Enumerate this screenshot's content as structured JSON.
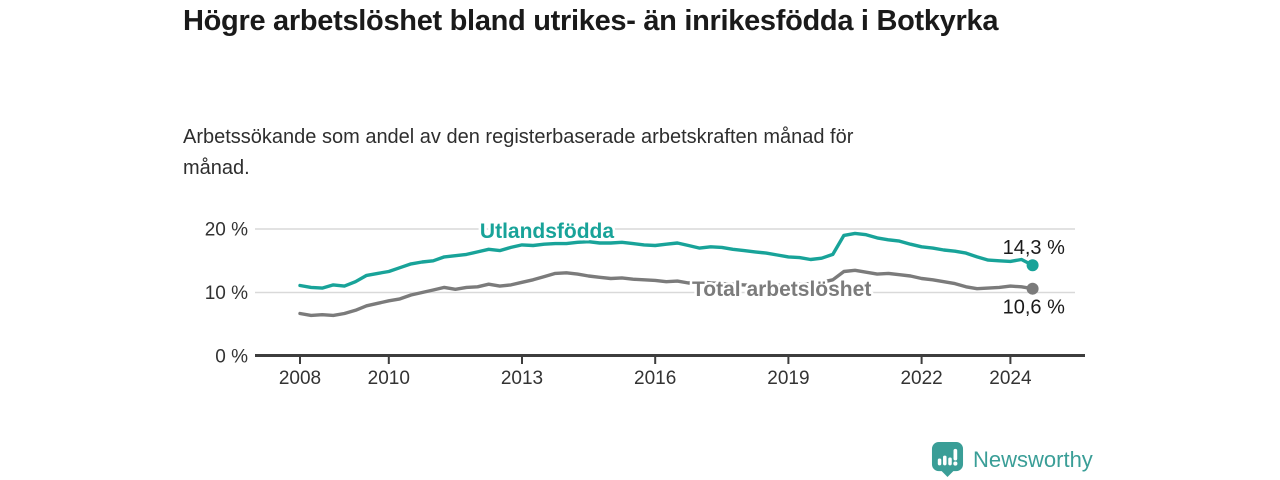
{
  "header": {
    "title": "Högre arbetslöshet bland utrikes- än inrikesfödda i Botkyrka",
    "subtitle": "Arbetssökande som andel av den registerbaserade arbetskraften månad för månad."
  },
  "chart_data": {
    "type": "line",
    "title": "Högre arbetslöshet bland utrikes- än inrikesfödda i Botkyrka",
    "subtitle": "Arbetssökande som andel av den registerbaserade arbetskraften månad för månad.",
    "xlabel": "",
    "ylabel": "",
    "unit": "%",
    "grid": "horizontal",
    "legend_position": "inline-labels",
    "xlim": [
      2007.0,
      2025.7
    ],
    "ylim": [
      0,
      22
    ],
    "x_ticks": [
      2008,
      2010,
      2013,
      2016,
      2019,
      2022,
      2024
    ],
    "y_ticks": [
      {
        "value": 0,
        "label": "0 %"
      },
      {
        "value": 10,
        "label": "10 %"
      },
      {
        "value": 20,
        "label": "20 %"
      }
    ],
    "x_start": 2008.0,
    "x_step": 0.25,
    "series": [
      {
        "name": "Utlandsfödda",
        "color": "#18a399",
        "end_value": 14.3,
        "end_label": "14,3 %",
        "values": [
          11.1,
          10.8,
          10.7,
          11.2,
          11.0,
          11.7,
          12.7,
          13.0,
          13.3,
          13.9,
          14.5,
          14.8,
          15.0,
          15.6,
          15.8,
          16.0,
          16.4,
          16.8,
          16.6,
          17.1,
          17.5,
          17.4,
          17.6,
          17.7,
          17.7,
          17.9,
          18.0,
          17.8,
          17.8,
          17.9,
          17.7,
          17.5,
          17.4,
          17.6,
          17.8,
          17.4,
          17.0,
          17.2,
          17.1,
          16.8,
          16.6,
          16.4,
          16.2,
          15.9,
          15.6,
          15.5,
          15.2,
          15.4,
          16.0,
          19.0,
          19.3,
          19.1,
          18.6,
          18.3,
          18.1,
          17.6,
          17.2,
          17.0,
          16.7,
          16.5,
          16.2,
          15.6,
          15.1,
          15.0,
          14.9,
          15.2,
          14.3
        ]
      },
      {
        "name": "Total arbetslöshet",
        "color": "#7b7b7b",
        "end_value": 10.6,
        "end_label": "10,6 %",
        "values": [
          6.7,
          6.4,
          6.5,
          6.4,
          6.7,
          7.2,
          7.9,
          8.3,
          8.7,
          9.0,
          9.6,
          10.0,
          10.4,
          10.8,
          10.5,
          10.8,
          10.9,
          11.3,
          11.0,
          11.2,
          11.6,
          12.0,
          12.5,
          13.0,
          13.1,
          12.9,
          12.6,
          12.4,
          12.2,
          12.3,
          12.1,
          12.0,
          11.9,
          11.7,
          11.8,
          11.5,
          11.7,
          11.5,
          11.4,
          11.3,
          11.2,
          11.1,
          11.0,
          11.1,
          11.2,
          11.3,
          11.4,
          11.6,
          12.0,
          13.3,
          13.5,
          13.2,
          12.9,
          13.0,
          12.8,
          12.6,
          12.2,
          12.0,
          11.7,
          11.4,
          10.9,
          10.6,
          10.7,
          10.8,
          11.0,
          10.9,
          10.6
        ]
      }
    ],
    "colors": {
      "axis": "#3d3d3d",
      "gridline": "#d9d9d9",
      "tick_text": "#333333",
      "end_label_text": "#1a1a1a"
    }
  },
  "footer": {
    "brand": "Newsworthy",
    "brand_color": "#3a9e97",
    "logo_icon": "newsworthy-chart-bubble-icon"
  }
}
